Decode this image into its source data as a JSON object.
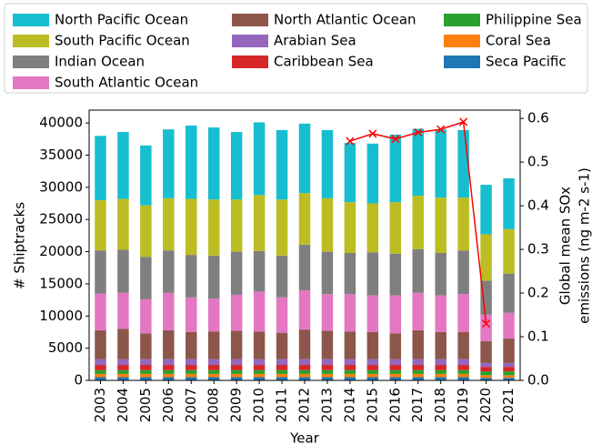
{
  "chart_data": {
    "type": "bar",
    "stacked": true,
    "xlabel": "Year",
    "ylabel": "# Shiptracks",
    "y2label": [
      "Global mean SOx",
      "emissions (ng m-2 s-1)"
    ],
    "categories": [
      "2003",
      "2004",
      "2005",
      "2006",
      "2007",
      "2008",
      "2009",
      "2010",
      "2011",
      "2012",
      "2013",
      "2014",
      "2015",
      "2016",
      "2017",
      "2018",
      "2019",
      "2020",
      "2021"
    ],
    "series": [
      {
        "name": "North Pacific Ocean",
        "color": "#17becf",
        "values": [
          10000,
          10400,
          9300,
          10700,
          11400,
          11200,
          10500,
          11300,
          10800,
          10800,
          10600,
          9200,
          9300,
          10500,
          10400,
          10600,
          10500,
          7700,
          7900
        ]
      },
      {
        "name": "South Pacific Ocean",
        "color": "#bcbd22",
        "values": [
          7800,
          7900,
          8000,
          8100,
          8700,
          8700,
          8100,
          8700,
          8700,
          8000,
          8300,
          7900,
          7600,
          8000,
          8300,
          8600,
          8200,
          7200,
          6900
        ]
      },
      {
        "name": "Indian Ocean",
        "color": "#7f7f7f",
        "values": [
          6700,
          6700,
          6600,
          6600,
          6600,
          6700,
          6700,
          6300,
          6500,
          7100,
          6600,
          6400,
          6700,
          6500,
          6800,
          6600,
          6800,
          5300,
          6100
        ]
      },
      {
        "name": "South Atlantic Ocean",
        "color": "#e377c2",
        "values": [
          5700,
          5600,
          5300,
          5800,
          5400,
          5100,
          5600,
          6200,
          5500,
          6100,
          5700,
          5800,
          5700,
          5900,
          5800,
          5700,
          5900,
          4100,
          4000
        ]
      },
      {
        "name": "North Atlantic Ocean",
        "color": "#8c564b",
        "values": [
          4500,
          4700,
          4000,
          4500,
          4200,
          4300,
          4400,
          4300,
          4100,
          4600,
          4400,
          4300,
          4200,
          4000,
          4500,
          4200,
          4200,
          3400,
          3800
        ]
      },
      {
        "name": "Arabian Sea",
        "color": "#9467bd",
        "values": [
          900,
          900,
          900,
          900,
          900,
          900,
          900,
          900,
          900,
          900,
          900,
          900,
          900,
          900,
          900,
          900,
          900,
          600,
          600
        ]
      },
      {
        "name": "Caribbean Sea",
        "color": "#d62728",
        "values": [
          800,
          800,
          800,
          800,
          800,
          800,
          800,
          800,
          800,
          800,
          800,
          800,
          800,
          800,
          800,
          800,
          800,
          700,
          700
        ]
      },
      {
        "name": "Philippine Sea",
        "color": "#2ca02c",
        "values": [
          600,
          600,
          600,
          600,
          600,
          600,
          600,
          600,
          600,
          600,
          600,
          600,
          600,
          600,
          600,
          600,
          600,
          600,
          600
        ]
      },
      {
        "name": "Coral Sea",
        "color": "#ff7f0e",
        "values": [
          500,
          500,
          500,
          500,
          500,
          500,
          500,
          500,
          500,
          500,
          500,
          500,
          500,
          500,
          500,
          500,
          500,
          400,
          400
        ]
      },
      {
        "name": "Seca Pacific",
        "color": "#1f77b4",
        "values": [
          500,
          500,
          500,
          500,
          500,
          500,
          500,
          500,
          500,
          500,
          500,
          500,
          500,
          500,
          500,
          500,
          500,
          400,
          400
        ]
      }
    ],
    "line": {
      "type": "line",
      "axis": "y2",
      "color": "red",
      "marker": "x",
      "values": [
        null,
        null,
        null,
        null,
        null,
        null,
        null,
        null,
        null,
        null,
        null,
        0.548,
        0.565,
        0.553,
        0.568,
        0.575,
        0.592,
        0.13,
        null
      ]
    },
    "ylim": [
      0,
      42000
    ],
    "yticks": [
      0,
      5000,
      10000,
      15000,
      20000,
      25000,
      30000,
      35000,
      40000
    ],
    "y2lim": [
      0,
      0.619
    ],
    "y2ticks": [
      {
        "value": 0,
        "label": "0.0"
      },
      0.1,
      0.2,
      0.3,
      0.4,
      0.5,
      0.6
    ]
  }
}
